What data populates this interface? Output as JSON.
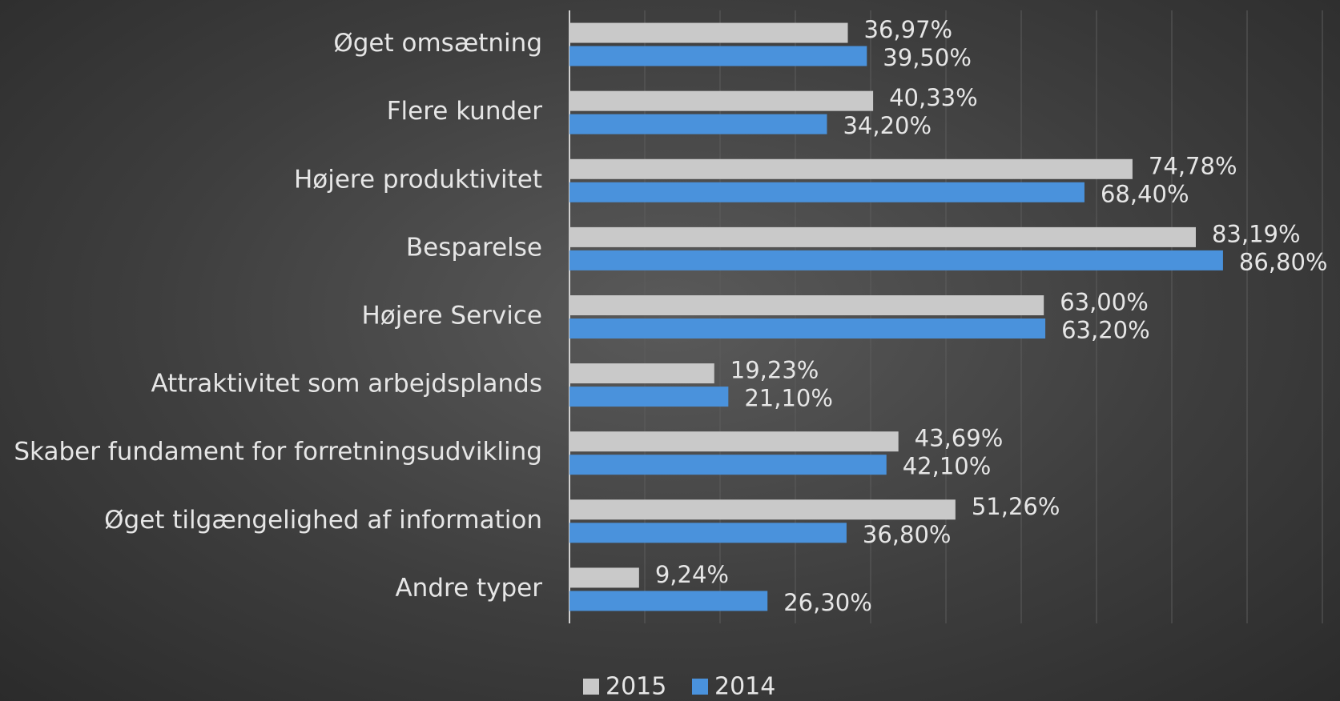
{
  "chart_data": {
    "type": "barh",
    "categories": [
      "Øget omsætning",
      "Flere kunder",
      "Højere produktivitet",
      "Besparelse",
      "Højere Service",
      "Attraktivitet som arbejdsplands",
      "Skaber fundament for forretningsudvikling",
      "Øget tilgængelighed af information",
      "Andre typer"
    ],
    "series": [
      {
        "name": "2015",
        "color": "#c9c9c9",
        "values": [
          36.97,
          40.33,
          74.78,
          83.19,
          63.0,
          19.23,
          43.69,
          51.26,
          9.24
        ],
        "value_labels": [
          "36,97%",
          "40,33%",
          "74,78%",
          "83,19%",
          "63,00%",
          "19,23%",
          "43,69%",
          "51,26%",
          "9,24%"
        ]
      },
      {
        "name": "2014",
        "color": "#4a92dc",
        "values": [
          39.5,
          34.2,
          68.4,
          86.8,
          63.2,
          21.1,
          42.1,
          36.8,
          26.3
        ],
        "value_labels": [
          "39,50%",
          "34,20%",
          "68,40%",
          "86,80%",
          "63,20%",
          "21,10%",
          "42,10%",
          "36,80%",
          "26,30%"
        ]
      }
    ],
    "xlim": [
      0,
      100
    ],
    "xticks": [
      0,
      10,
      20,
      30,
      40,
      50,
      60,
      70,
      80,
      90,
      100
    ],
    "grid": true,
    "legend": "bottom"
  }
}
